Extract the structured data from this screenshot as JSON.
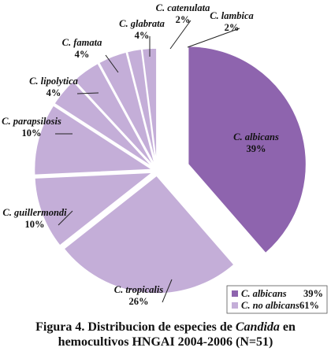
{
  "chart_data": {
    "type": "pie",
    "title": "",
    "slices": [
      {
        "name": "C. albicans",
        "value": 39,
        "label": "39%",
        "color": "#8e64ae",
        "exploded": false
      },
      {
        "name": "C. tropicalis",
        "value": 26,
        "label": "26%",
        "color": "#c4aed8",
        "exploded": true
      },
      {
        "name": "C. guillermondi",
        "value": 10,
        "label": "10%",
        "color": "#c4aed8",
        "exploded": true
      },
      {
        "name": "C. parapsilosis",
        "value": 10,
        "label": "10%",
        "color": "#c4aed8",
        "exploded": true
      },
      {
        "name": "C. lipolytica",
        "value": 4,
        "label": "4%",
        "color": "#c4aed8",
        "exploded": true
      },
      {
        "name": "C. famata",
        "value": 4,
        "label": "4%",
        "color": "#c4aed8",
        "exploded": true
      },
      {
        "name": "C. glabrata",
        "value": 4,
        "label": "4%",
        "color": "#c4aed8",
        "exploded": true
      },
      {
        "name": "C. catenulata",
        "value": 2,
        "label": "2%",
        "color": "#c4aed8",
        "exploded": true
      },
      {
        "name": "C. lambica",
        "value": 2,
        "label": "2%",
        "color": "#c4aed8",
        "exploded": true
      }
    ],
    "legend": {
      "position": "bottom-right",
      "entries": [
        {
          "name": "C. albicans",
          "value": "39%",
          "color": "#8e64ae"
        },
        {
          "name": "C. no albicans",
          "value": "61%",
          "color": "#c4aed8"
        }
      ]
    }
  },
  "caption": {
    "prefix": "Figura 4. Distribucion de especies de ",
    "italic": "Candida",
    "suffix": " en",
    "line2": "hemocultivos HNGAI 2004-2006 (N=51)"
  }
}
